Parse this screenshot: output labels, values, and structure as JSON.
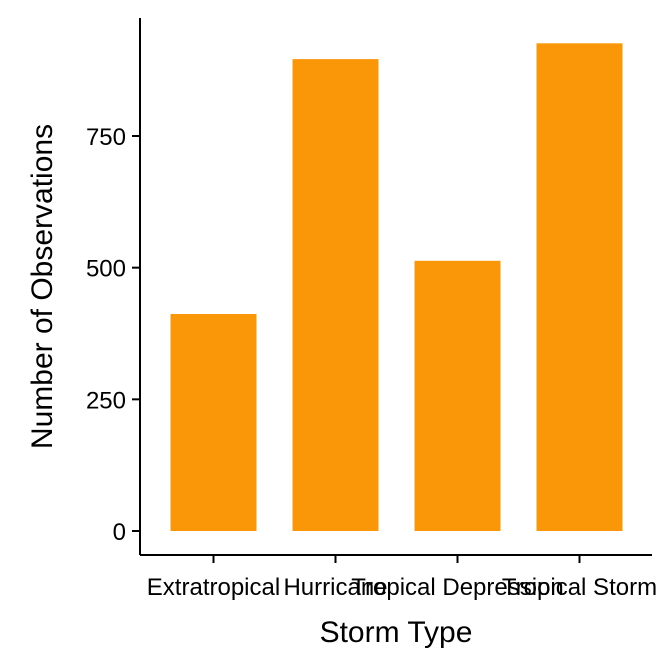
{
  "chart_data": {
    "type": "bar",
    "categories": [
      "Extratropical",
      "Hurricane",
      "Tropical Depression",
      "Tropical Storm"
    ],
    "values": [
      412,
      896,
      513,
      926
    ],
    "xlabel": "Storm Type",
    "ylabel": "Number of Observations",
    "ylim": [
      0,
      960
    ],
    "yticks": [
      0,
      250,
      500,
      750
    ],
    "bar_color": "#FA9708",
    "grid": false,
    "legend": "none"
  }
}
